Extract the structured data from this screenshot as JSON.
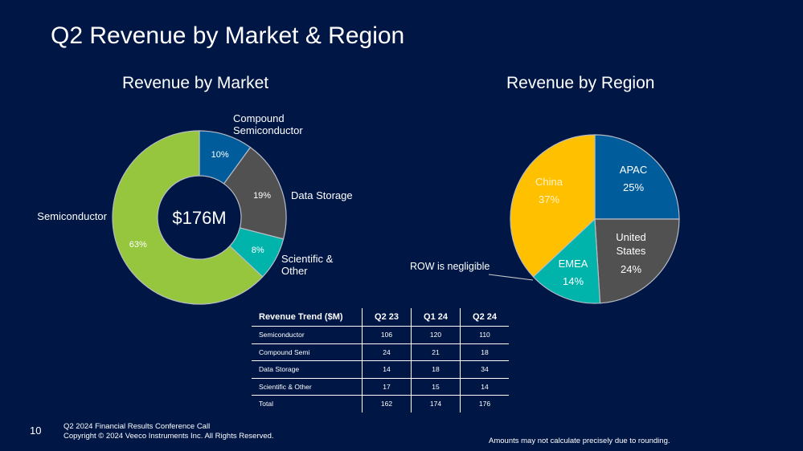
{
  "slide": {
    "title": "Q2 Revenue by Market & Region",
    "page_number": "10",
    "footer_line1": "Q2 2024 Financial Results Conference Call",
    "footer_line2": "Copyright © 2024 Veeco Instruments Inc. All Rights Reserved.",
    "footnote": "Amounts may not calculate precisely due to rounding.",
    "colors": {
      "background": "#001746",
      "semiconductor": "#95C63D",
      "compound": "#005C9B",
      "data_storage": "#515151",
      "scientific": "#00B4AC",
      "china": "#FFC000",
      "apac": "#005C9B",
      "us": "#515151",
      "emea": "#00B4AC"
    }
  },
  "chart_data": [
    {
      "type": "pie",
      "variant": "donut",
      "title": "Revenue by Market",
      "center_label": "$176M",
      "slices": [
        {
          "name": "Compound Semiconductor",
          "value": 10,
          "value_label": "10%",
          "color": "#005C9B"
        },
        {
          "name": "Data Storage",
          "value": 19,
          "value_label": "19%",
          "color": "#515151"
        },
        {
          "name": "Scientific & Other",
          "value": 8,
          "value_label": "8%",
          "color": "#00B4AC"
        },
        {
          "name": "Semiconductor",
          "value": 63,
          "value_label": "63%",
          "color": "#95C63D"
        }
      ]
    },
    {
      "type": "pie",
      "title": "Revenue by Region",
      "annotation": "ROW is negligible",
      "slices": [
        {
          "name": "APAC",
          "value": 25,
          "value_label": "25%",
          "color": "#005C9B"
        },
        {
          "name": "United States",
          "value": 24,
          "value_label": "24%",
          "color": "#515151"
        },
        {
          "name": "EMEA",
          "value": 14,
          "value_label": "14%",
          "color": "#00B4AC"
        },
        {
          "name": "China",
          "value": 37,
          "value_label": "37%",
          "color": "#FFC000"
        }
      ]
    },
    {
      "type": "table",
      "title": "Revenue Trend ($M)",
      "columns": [
        "Revenue Trend ($M)",
        "Q2 23",
        "Q1 24",
        "Q2 24"
      ],
      "rows": [
        [
          "Semiconductor",
          "106",
          "120",
          "110"
        ],
        [
          "Compound Semi",
          "24",
          "21",
          "18"
        ],
        [
          "Data Storage",
          "14",
          "18",
          "34"
        ],
        [
          "Scientific & Other",
          "17",
          "15",
          "14"
        ],
        [
          "Total",
          "162",
          "174",
          "176"
        ]
      ]
    }
  ]
}
